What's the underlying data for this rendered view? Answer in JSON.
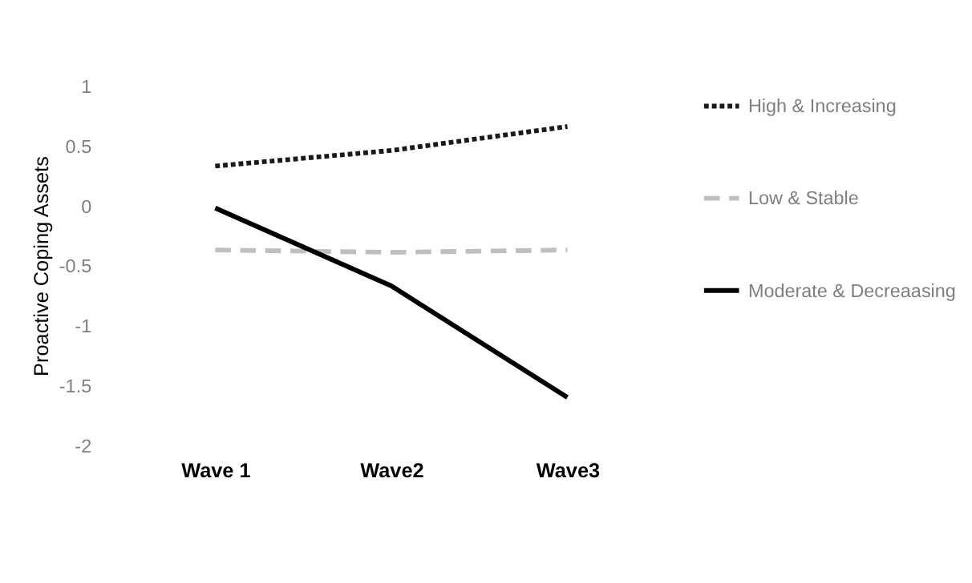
{
  "chart_data": {
    "type": "line",
    "ylabel": "Proactive Coping Assets",
    "categories": [
      "Wave 1",
      "Wave2",
      "Wave3"
    ],
    "series": [
      {
        "name": "High & Increasing",
        "color": "#1a1a1a",
        "line_style": "dotted",
        "values": [
          0.33,
          0.46,
          0.66
        ]
      },
      {
        "name": "Low & Stable",
        "color": "#bfbfbf",
        "line_style": "dashed",
        "values": [
          -0.37,
          -0.39,
          -0.37
        ]
      },
      {
        "name": "Moderate & Decreaasing",
        "color": "#000000",
        "line_style": "solid",
        "values": [
          -0.02,
          -0.67,
          -1.6
        ]
      }
    ],
    "ylim": [
      -2,
      1
    ],
    "yticks": [
      -2,
      -1.5,
      -1,
      -0.5,
      0,
      0.5,
      1
    ],
    "grid": false,
    "legend": "right",
    "marker": "none"
  }
}
